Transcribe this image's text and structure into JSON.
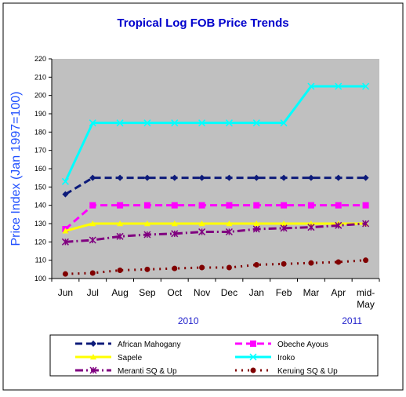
{
  "chart_data": {
    "type": "line",
    "title": "Tropical Log FOB Price Trends",
    "ylabel": "Price Index (Jan 1997=100)",
    "xlabel": "",
    "ylim": [
      100,
      220
    ],
    "yticks": [
      100,
      110,
      120,
      130,
      140,
      150,
      160,
      170,
      180,
      190,
      200,
      210,
      220
    ],
    "grid": false,
    "legend_position": "bottom",
    "categories": [
      "Jun",
      "Jul",
      "Aug",
      "Sep",
      "Oct",
      "Nov",
      "Dec",
      "Jan",
      "Feb",
      "Mar",
      "Apr",
      "mid-May"
    ],
    "year_labels": [
      "2010",
      "2011"
    ],
    "colors": {
      "plot_background": "#c0c0c0",
      "title": "#0000cc",
      "ylabel": "#1f4fff",
      "year_labels": "#2222cc"
    },
    "series": [
      {
        "name": "African Mahogany",
        "color": "#0d1b7a",
        "marker": "diamond",
        "dash": "dash",
        "values": [
          146,
          155,
          155,
          155,
          155,
          155,
          155,
          155,
          155,
          155,
          155,
          155
        ]
      },
      {
        "name": "Obeche Ayous",
        "color": "#ff00ff",
        "marker": "square",
        "dash": "dash",
        "values": [
          127,
          140,
          140,
          140,
          140,
          140,
          140,
          140,
          140,
          140,
          140,
          140
        ]
      },
      {
        "name": "Sapele",
        "color": "#ffff00",
        "marker": "triangle",
        "dash": "solid",
        "values": [
          126,
          130,
          130,
          130,
          130,
          130,
          130,
          130,
          130,
          130,
          130,
          130
        ]
      },
      {
        "name": "Iroko",
        "color": "#00ffff",
        "marker": "x",
        "dash": "solid",
        "values": [
          153,
          185,
          185,
          185,
          185,
          185,
          185,
          185,
          185,
          205,
          205,
          205
        ]
      },
      {
        "name": "Meranti SQ & Up",
        "color": "#800080",
        "marker": "star",
        "dash": "dashdot",
        "values": [
          120,
          121,
          123,
          124,
          124.5,
          125.5,
          125.5,
          127,
          127.5,
          128,
          129,
          130
        ]
      },
      {
        "name": "Keruing SQ & Up",
        "color": "#800000",
        "marker": "circle",
        "dash": "dot",
        "values": [
          102.5,
          103,
          104.5,
          105,
          105.5,
          106,
          106,
          107.5,
          108,
          108.5,
          109,
          110
        ]
      }
    ]
  }
}
